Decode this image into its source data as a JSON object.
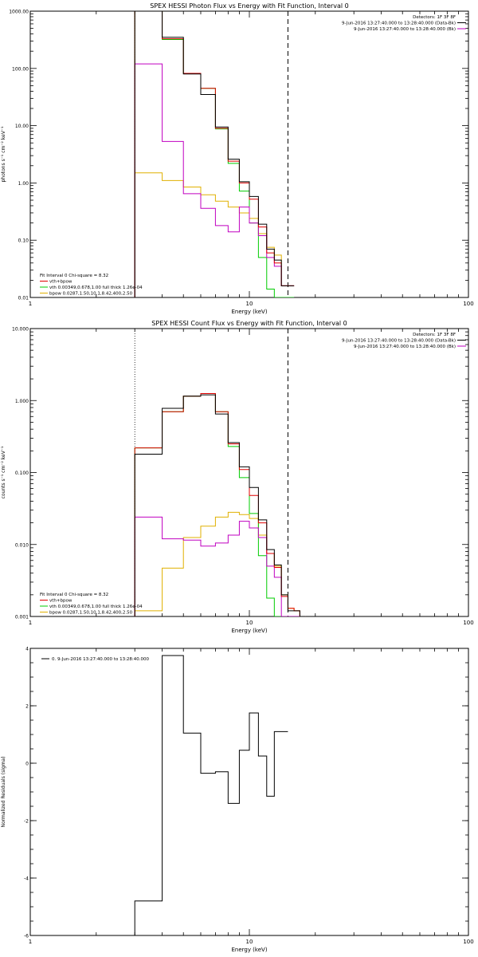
{
  "colors": {
    "data": "#000000",
    "bk": "#c000c0",
    "model_sum": "#e00000",
    "vth": "#00cc00",
    "bpow": "#e0b000",
    "axes": "#000000"
  },
  "chart_data": [
    {
      "type": "line",
      "title": "SPEX HESSI Photon Flux vs Energy with Fit Function, Interval 0",
      "xlabel": "Energy (keV)",
      "ylabel": "photons s⁻¹ cm⁻² keV⁻¹",
      "xscale": "log",
      "yscale": "log",
      "xlim": [
        1,
        100
      ],
      "ylim": [
        0.01,
        1000
      ],
      "xticks": [
        1,
        10,
        100
      ],
      "xticklabels": [
        "1",
        "10",
        "100"
      ],
      "yticks": [
        0.01,
        0.1,
        1,
        10,
        100,
        1000
      ],
      "yticklabels": [
        "0.01",
        "0.10",
        "1.00",
        "10.00",
        "100.00",
        "1000.00"
      ],
      "legend_top": [
        "Detectors: 1F 3F 8F",
        "9-Jun-2016 13:27:40.000 to 13:28:40.000 (Data-Bk)",
        "9-Jun-2016 13:27:40.000 to 13:28:40.000 (Bk)"
      ],
      "legend_bottom": [
        "Fit Interval 0   Chi-square = 8.32",
        "vth+bpow",
        "vth 0.00349,0.678,1.00  full thick 1.26e-04",
        "bpow 0.0287,1.50,10.1,8.42,400,2.50"
      ],
      "vlines_dotted": [
        3.0
      ],
      "vlines_dashed": [
        15.0
      ],
      "edges": [
        3,
        4,
        5,
        6,
        7,
        8,
        9,
        10,
        11,
        12,
        13,
        14,
        15,
        16
      ],
      "series": [
        {
          "name": "Data-Bk",
          "values": [
            1000,
            350,
            80,
            35,
            9.5,
            2.6,
            1.05,
            0.58,
            0.19,
            0.07,
            0.045,
            0.016,
            0.016
          ]
        },
        {
          "name": "Bk",
          "values": [
            120,
            5.3,
            0.65,
            0.36,
            0.18,
            0.14,
            0.38,
            0.2,
            0.12,
            0.05,
            0.035,
            0.016,
            0.016
          ]
        },
        {
          "name": "vth+bpow",
          "values": [
            1000,
            330,
            82,
            45,
            9.0,
            2.4,
            1.0,
            0.52,
            0.17,
            0.06,
            0.04,
            0.016,
            0.016
          ]
        },
        {
          "name": "vth",
          "values": [
            1000,
            320,
            82,
            45,
            8.8,
            2.2,
            0.72,
            0.2,
            0.05,
            0.014,
            0.01,
            0.01,
            0.01
          ]
        },
        {
          "name": "bpow",
          "values": [
            1.5,
            1.1,
            0.85,
            0.62,
            0.48,
            0.38,
            0.3,
            0.24,
            0.13,
            0.075,
            0.055,
            0.016,
            0.016
          ]
        }
      ]
    },
    {
      "type": "line",
      "title": "SPEX HESSI Count Flux vs Energy with Fit Function, Interval 0",
      "xlabel": "Energy (keV)",
      "ylabel": "counts s⁻¹ cm⁻² keV⁻¹",
      "xscale": "log",
      "yscale": "log",
      "xlim": [
        1,
        100
      ],
      "ylim": [
        0.001,
        10
      ],
      "xticks": [
        1,
        10,
        100
      ],
      "xticklabels": [
        "1",
        "10",
        "100"
      ],
      "yticks": [
        0.001,
        0.01,
        0.1,
        1,
        10
      ],
      "yticklabels": [
        "0.001",
        "0.010",
        "0.100",
        "1.000",
        "10.000"
      ],
      "legend_top": [
        "Detectors: 1F 3F 8F",
        "9-Jun-2016 13:27:40.000 to 13:28:40.000 (Data-Bk)",
        "9-Jun-2016 13:27:40.000 to 13:28:40.000 (Bk)"
      ],
      "legend_bottom": [
        "Fit Interval 0   Chi-square = 8.32",
        "vth+bpow",
        "vth 0.00349,0.678,1.00  full thick 1.26e-04",
        "bpow 0.0287,1.50,10.1,8.42,400,2.50"
      ],
      "vlines_dotted": [
        3.0
      ],
      "vlines_dashed": [
        15.0
      ],
      "edges": [
        3,
        4,
        5,
        6,
        7,
        8,
        9,
        10,
        11,
        12,
        13,
        14,
        15,
        16,
        17,
        18
      ],
      "series": [
        {
          "name": "Data-Bk",
          "values": [
            0.18,
            0.78,
            1.15,
            1.2,
            0.65,
            0.26,
            0.12,
            0.062,
            0.022,
            0.0085,
            0.0052,
            0.002,
            0.0012,
            0.0012,
            0.001
          ]
        },
        {
          "name": "Bk",
          "values": [
            0.024,
            0.012,
            0.0115,
            0.0095,
            0.0105,
            0.0135,
            0.021,
            0.017,
            0.0125,
            0.005,
            0.0035,
            0.001,
            0.001,
            0.001,
            0.001
          ]
        },
        {
          "name": "vth+bpow",
          "values": [
            0.22,
            0.7,
            1.15,
            1.25,
            0.7,
            0.25,
            0.11,
            0.048,
            0.02,
            0.0075,
            0.0048,
            0.0019,
            0.0013,
            0.0012,
            0.001
          ]
        },
        {
          "name": "vth",
          "values": [
            0.22,
            0.7,
            1.15,
            1.25,
            0.7,
            0.23,
            0.085,
            0.027,
            0.007,
            0.0018,
            0.001,
            0.001,
            0.001,
            0.001,
            0.001
          ]
        },
        {
          "name": "bpow",
          "values": [
            0.0012,
            0.0047,
            0.0125,
            0.018,
            0.024,
            0.028,
            0.026,
            0.023,
            0.0135,
            0.0075,
            0.005,
            0.002,
            0.0013,
            0.0012,
            0.001
          ]
        }
      ]
    },
    {
      "type": "line",
      "title": "",
      "xlabel": "Energy (keV)",
      "ylabel": "Normalized Residuals (sigma)",
      "xscale": "log",
      "yscale": "linear",
      "xlim": [
        1,
        100
      ],
      "ylim": [
        -6,
        4
      ],
      "xticks": [
        1,
        10,
        100
      ],
      "xticklabels": [
        "1",
        "10",
        "100"
      ],
      "yticks": [
        -6,
        -4,
        -2,
        0,
        2,
        4
      ],
      "yticklabels": [
        "-6",
        "-4",
        "-2",
        "0",
        "2",
        "4"
      ],
      "legend_top_left": "0.  9-Jun-2016 13:27:40.000 to 13:28:40.000",
      "edges": [
        3,
        4,
        5,
        6,
        7,
        8,
        9,
        10,
        11,
        12,
        13,
        14,
        15
      ],
      "series": [
        {
          "name": "0.  9-Jun-2016 13:27:40.000 to 13:28:40.000",
          "values": [
            -4.8,
            3.75,
            1.05,
            -0.35,
            -0.3,
            -1.4,
            0.45,
            1.75,
            0.25,
            -1.15,
            1.1,
            1.1
          ]
        }
      ]
    }
  ]
}
